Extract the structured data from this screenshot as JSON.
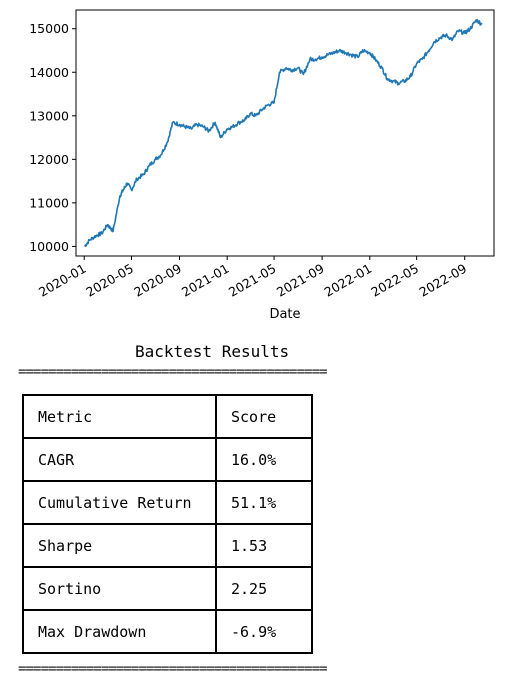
{
  "chart_data": {
    "type": "line",
    "title": "",
    "xlabel": "Date",
    "ylabel": "",
    "x_ticks": [
      "2020-01",
      "2020-05",
      "2020-09",
      "2021-01",
      "2021-05",
      "2021-09",
      "2022-01",
      "2022-05",
      "2022-09"
    ],
    "y_ticks": [
      10000,
      11000,
      12000,
      13000,
      14000,
      15000
    ],
    "xlim": [
      "2019-12-11",
      "2022-11-15"
    ],
    "ylim": [
      9780,
      15430
    ],
    "grid": false,
    "color": "#1f77b4",
    "series": [
      {
        "x": [
          "2020-01-02",
          "2020-01-15",
          "2020-02-01",
          "2020-02-15",
          "2020-03-01",
          "2020-03-15",
          "2020-04-01",
          "2020-04-10",
          "2020-04-20",
          "2020-05-01",
          "2020-05-15",
          "2020-06-01",
          "2020-06-15",
          "2020-07-01",
          "2020-07-15",
          "2020-08-01",
          "2020-08-15",
          "2020-09-01",
          "2020-09-15",
          "2020-10-01",
          "2020-10-15",
          "2020-11-01",
          "2020-11-15",
          "2020-12-01",
          "2020-12-15",
          "2021-01-01",
          "2021-01-15",
          "2021-02-01",
          "2021-02-15",
          "2021-03-01",
          "2021-03-15",
          "2021-04-01",
          "2021-04-15",
          "2021-05-01",
          "2021-05-15",
          "2021-06-01",
          "2021-06-15",
          "2021-07-01",
          "2021-07-15",
          "2021-08-01",
          "2021-08-15",
          "2021-09-01",
          "2021-09-15",
          "2021-10-01",
          "2021-10-15",
          "2021-11-01",
          "2021-11-15",
          "2021-12-01",
          "2021-12-15",
          "2022-01-01",
          "2022-01-15",
          "2022-02-01",
          "2022-02-15",
          "2022-03-01",
          "2022-03-15",
          "2022-04-01",
          "2022-04-15",
          "2022-05-01",
          "2022-05-15",
          "2022-06-01",
          "2022-06-15",
          "2022-07-01",
          "2022-07-15",
          "2022-08-01",
          "2022-08-15",
          "2022-09-01",
          "2022-09-15",
          "2022-10-01",
          "2022-10-15"
        ],
        "y": [
          10000,
          10150,
          10250,
          10300,
          10500,
          10350,
          11150,
          11300,
          11450,
          11300,
          11550,
          11650,
          11850,
          12000,
          12100,
          12400,
          12850,
          12800,
          12750,
          12700,
          12800,
          12750,
          12650,
          12850,
          12500,
          12700,
          12750,
          12850,
          12900,
          13050,
          13000,
          13150,
          13250,
          13300,
          14000,
          14100,
          14050,
          14100,
          13950,
          14300,
          14300,
          14350,
          14400,
          14450,
          14500,
          14450,
          14400,
          14350,
          14500,
          14450,
          14300,
          14100,
          13850,
          13800,
          13750,
          13800,
          13900,
          14200,
          14300,
          14500,
          14700,
          14800,
          14850,
          14750,
          14950,
          14900,
          15000,
          15200,
          15100
        ]
      }
    ]
  },
  "results": {
    "title": "Backtest Results",
    "rule": "=========================================",
    "headers": [
      "Metric",
      "Score"
    ],
    "rows": [
      [
        "CAGR",
        "16.0%"
      ],
      [
        "Cumulative Return",
        "51.1%"
      ],
      [
        "Sharpe",
        "1.53"
      ],
      [
        "Sortino",
        "2.25"
      ],
      [
        "Max Drawdown",
        "-6.9%"
      ]
    ]
  }
}
